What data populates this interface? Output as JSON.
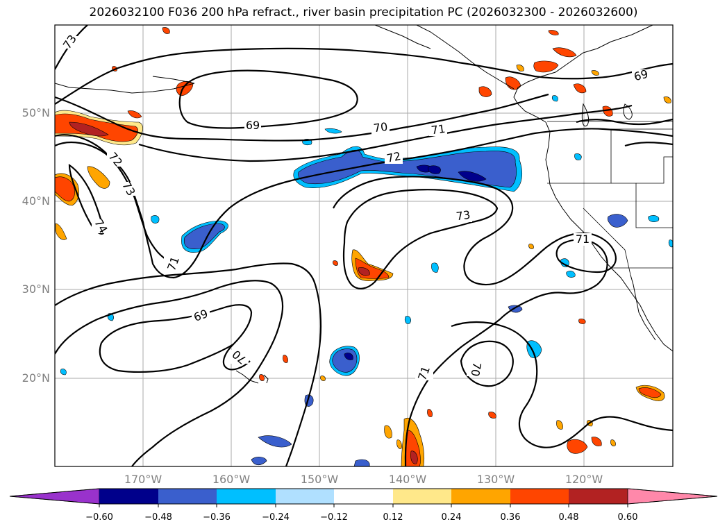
{
  "title": "2026032100 F036 200 hPa refract., river basin precipitation PC (2026032300 - 2026032600)",
  "map": {
    "lon_labels": [
      "170°W",
      "160°W",
      "150°W",
      "140°W",
      "130°W",
      "120°W"
    ],
    "lat_labels": [
      "50°N",
      "40°N",
      "30°N",
      "20°N"
    ],
    "contour_labels": [
      {
        "text": "73"
      },
      {
        "text": "69"
      },
      {
        "text": "70"
      },
      {
        "text": "71"
      },
      {
        "text": "72"
      },
      {
        "text": "72"
      },
      {
        "text": "73"
      },
      {
        "text": "74"
      },
      {
        "text": "73"
      },
      {
        "text": "71"
      },
      {
        "text": "69"
      },
      {
        "text": "70"
      },
      {
        "text": "71"
      },
      {
        "text": "70"
      },
      {
        "text": "71"
      },
      {
        "text": "69"
      }
    ]
  },
  "colorbar": {
    "tick_labels": [
      "−0.60",
      "−0.48",
      "−0.36",
      "−0.24",
      "−0.12",
      "0.12",
      "0.24",
      "0.36",
      "0.48",
      "0.60"
    ],
    "colors": [
      "#9932cc",
      "#00008b",
      "#3a5fcd",
      "#00bfff",
      "#b0e0ff",
      "#ffffff",
      "#ffe88a",
      "#ffa500",
      "#ff4500",
      "#b22222",
      "#ff88aa"
    ]
  },
  "palette": {
    "neg_dark": "#00008b",
    "neg_mid": "#3a5fcd",
    "neg_light": "#00bfff",
    "pos_light": "#ffe88a",
    "pos_mid": "#ffa500",
    "pos_strong": "#ff4500",
    "pos_dark": "#b22222"
  }
}
